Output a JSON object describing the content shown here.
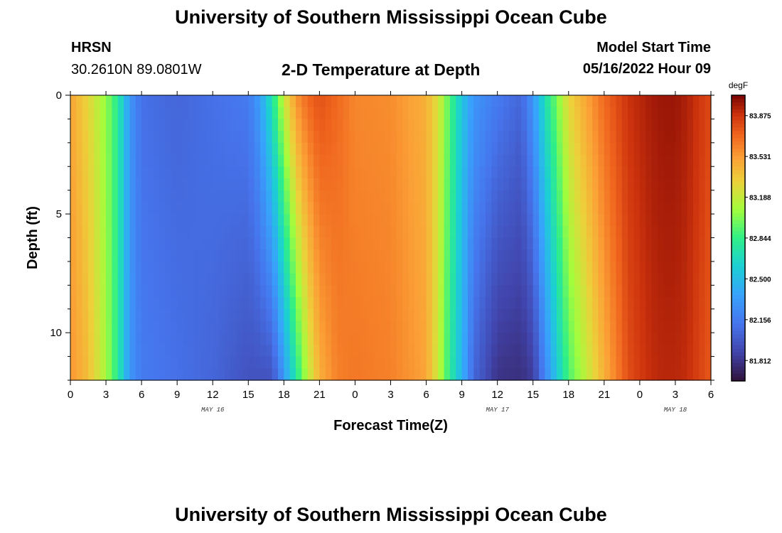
{
  "header": {
    "title": "University of Southern Mississippi Ocean Cube",
    "station_id": "HRSN",
    "coordinates": "30.2610N  89.0801W",
    "subtitle": "2-D Temperature at Depth",
    "model_start_label": "Model Start Time",
    "model_start_value": "05/16/2022 Hour 09"
  },
  "footer": {
    "title": "University of Southern Mississippi Ocean Cube"
  },
  "chart_data": {
    "type": "heatmap",
    "xlabel": "Forecast Time(Z)",
    "ylabel": "Depth (ft)",
    "x_tick_labels": [
      "0",
      "3",
      "6",
      "9",
      "12",
      "15",
      "18",
      "21",
      "0",
      "3",
      "6",
      "9",
      "12",
      "15",
      "18",
      "21",
      "0",
      "3",
      "6"
    ],
    "x_range_hours": [
      0,
      54
    ],
    "date_labels": [
      {
        "label": "MAY 16",
        "at_hour": 12
      },
      {
        "label": "MAY 17",
        "at_hour": 36
      },
      {
        "label": "MAY 18",
        "at_hour": 51
      }
    ],
    "y_range": [
      0,
      12
    ],
    "y_tick_labels": [
      0,
      5,
      10
    ],
    "colorbar": {
      "unit": "degF",
      "min": 81.64,
      "max": 84.047,
      "tick_values": [
        83.875,
        83.531,
        83.188,
        82.844,
        82.5,
        82.156,
        81.812
      ],
      "tick_labels": [
        "83.875",
        "83.531",
        "83.188",
        "82.844",
        "82.500",
        "82.156",
        "81.812"
      ]
    },
    "hours": [
      0,
      1.5,
      3,
      4,
      4.5,
      5,
      6,
      9,
      12,
      15,
      16,
      17,
      18,
      19,
      20,
      21,
      22.5,
      24,
      27,
      30,
      31,
      32,
      33,
      34,
      36,
      38,
      39,
      40,
      42,
      45,
      47,
      48,
      49,
      50,
      51,
      52,
      54
    ],
    "surface_degF": [
      83.5,
      83.3,
      83.05,
      82.8,
      82.55,
      82.3,
      82.1,
      82.05,
      82.1,
      82.15,
      82.35,
      82.75,
      83.2,
      83.55,
      83.7,
      83.78,
      83.7,
      83.6,
      83.58,
      83.45,
      83.25,
      82.9,
      82.55,
      82.3,
      82.15,
      82.05,
      82.3,
      82.7,
      83.3,
      83.7,
      83.88,
      83.92,
      83.96,
      83.98,
      83.98,
      83.94,
      83.8
    ],
    "bottom_degF": [
      83.55,
      83.4,
      83.1,
      82.8,
      82.55,
      82.3,
      82.15,
      82.1,
      82.05,
      81.95,
      81.95,
      81.95,
      82.3,
      82.75,
      83.15,
      83.45,
      83.62,
      83.65,
      83.62,
      83.5,
      83.2,
      82.8,
      82.45,
      82.05,
      81.8,
      81.78,
      81.85,
      82.2,
      82.9,
      83.45,
      83.78,
      83.85,
      83.9,
      83.92,
      83.92,
      83.9,
      83.75
    ]
  }
}
